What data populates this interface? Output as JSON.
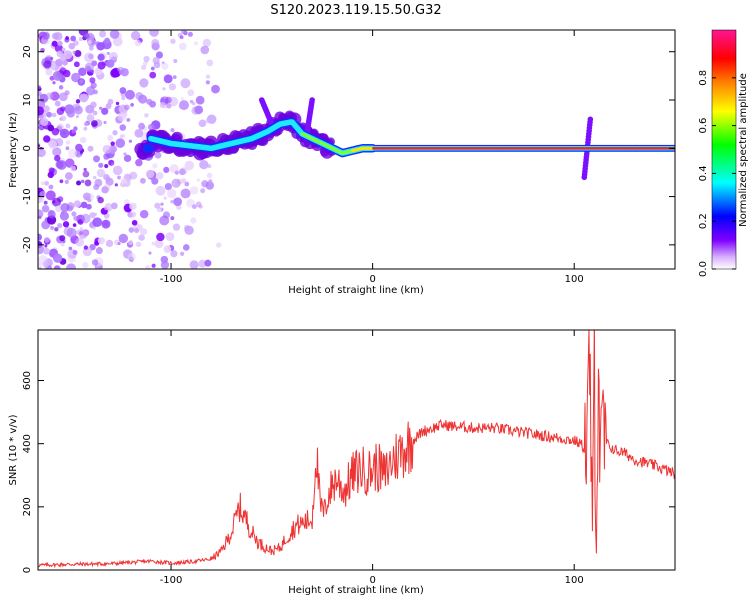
{
  "chart_data": [
    {
      "type": "heatmap",
      "title": "S120.2023.119.15.50.G32",
      "xlabel": "Height of straight line (km)",
      "ylabel": "Frequency (Hz)",
      "xlim": [
        -166,
        150
      ],
      "ylim": [
        -25,
        24.5
      ],
      "x_ticks": [
        -100,
        0,
        100
      ],
      "y_ticks": [
        -20,
        -10,
        0,
        10,
        20
      ],
      "colorbar": {
        "label": "Normalized spectral amplitude",
        "range": [
          0,
          1
        ],
        "ticks": [
          0.0,
          0.2,
          0.4,
          0.6,
          0.8
        ],
        "colors": [
          "#ffffff",
          "#8000ff",
          "#0000ff",
          "#00ffff",
          "#00ff00",
          "#ffff00",
          "#ff8000",
          "#ff0000",
          "#ff00a0"
        ]
      },
      "ridge": [
        [
          -110,
          2
        ],
        [
          -100,
          1
        ],
        [
          -90,
          0.5
        ],
        [
          -80,
          0
        ],
        [
          -70,
          1
        ],
        [
          -60,
          2
        ],
        [
          -52,
          3.5
        ],
        [
          -46,
          5
        ],
        [
          -40,
          5.5
        ],
        [
          -35,
          3
        ],
        [
          -30,
          2
        ],
        [
          -25,
          1
        ],
        [
          -20,
          0
        ],
        [
          -15,
          -1
        ],
        [
          -10,
          -0.5
        ],
        [
          -5,
          0
        ],
        [
          0,
          0
        ],
        [
          20,
          0
        ],
        [
          50,
          0
        ],
        [
          80,
          0
        ],
        [
          100,
          0
        ],
        [
          105,
          0
        ],
        [
          110,
          0
        ],
        [
          150,
          0
        ]
      ],
      "streaks": [
        {
          "x": [
            -50,
            -55
          ],
          "y": [
            5,
            10
          ]
        },
        {
          "x": [
            -33,
            -30
          ],
          "y": [
            2,
            10
          ]
        },
        {
          "x": [
            105,
            108
          ],
          "y": [
            -6,
            6
          ]
        }
      ]
    },
    {
      "type": "line",
      "title": "",
      "xlabel": "Height of straight line (km)",
      "ylabel": "SNR (10 * v/v)",
      "xlim": [
        -166,
        150
      ],
      "ylim": [
        0,
        760
      ],
      "x_ticks": [
        -100,
        0,
        100
      ],
      "y_ticks": [
        0,
        200,
        400,
        600
      ],
      "color": "#ee3333",
      "x": [
        -166,
        -150,
        -130,
        -110,
        -100,
        -90,
        -80,
        -75,
        -70,
        -66,
        -62,
        -60,
        -57,
        -54,
        -50,
        -46,
        -42,
        -38,
        -34,
        -30,
        -28,
        -26,
        -24,
        -22,
        -18,
        -14,
        -10,
        -6,
        -2,
        2,
        6,
        10,
        15,
        20,
        25,
        30,
        35,
        40,
        50,
        60,
        70,
        80,
        90,
        100,
        103,
        106,
        108,
        109,
        110,
        111,
        112,
        113,
        114,
        116,
        120,
        125,
        130,
        140,
        150
      ],
      "y": [
        15,
        18,
        20,
        28,
        22,
        26,
        35,
        60,
        120,
        200,
        150,
        120,
        90,
        75,
        60,
        70,
        110,
        140,
        150,
        160,
        380,
        200,
        180,
        240,
        290,
        250,
        300,
        320,
        310,
        330,
        300,
        350,
        380,
        410,
        440,
        450,
        460,
        455,
        450,
        450,
        440,
        430,
        420,
        410,
        400,
        380,
        600,
        80,
        640,
        100,
        700,
        300,
        420,
        400,
        380,
        370,
        350,
        330,
        305
      ]
    }
  ]
}
